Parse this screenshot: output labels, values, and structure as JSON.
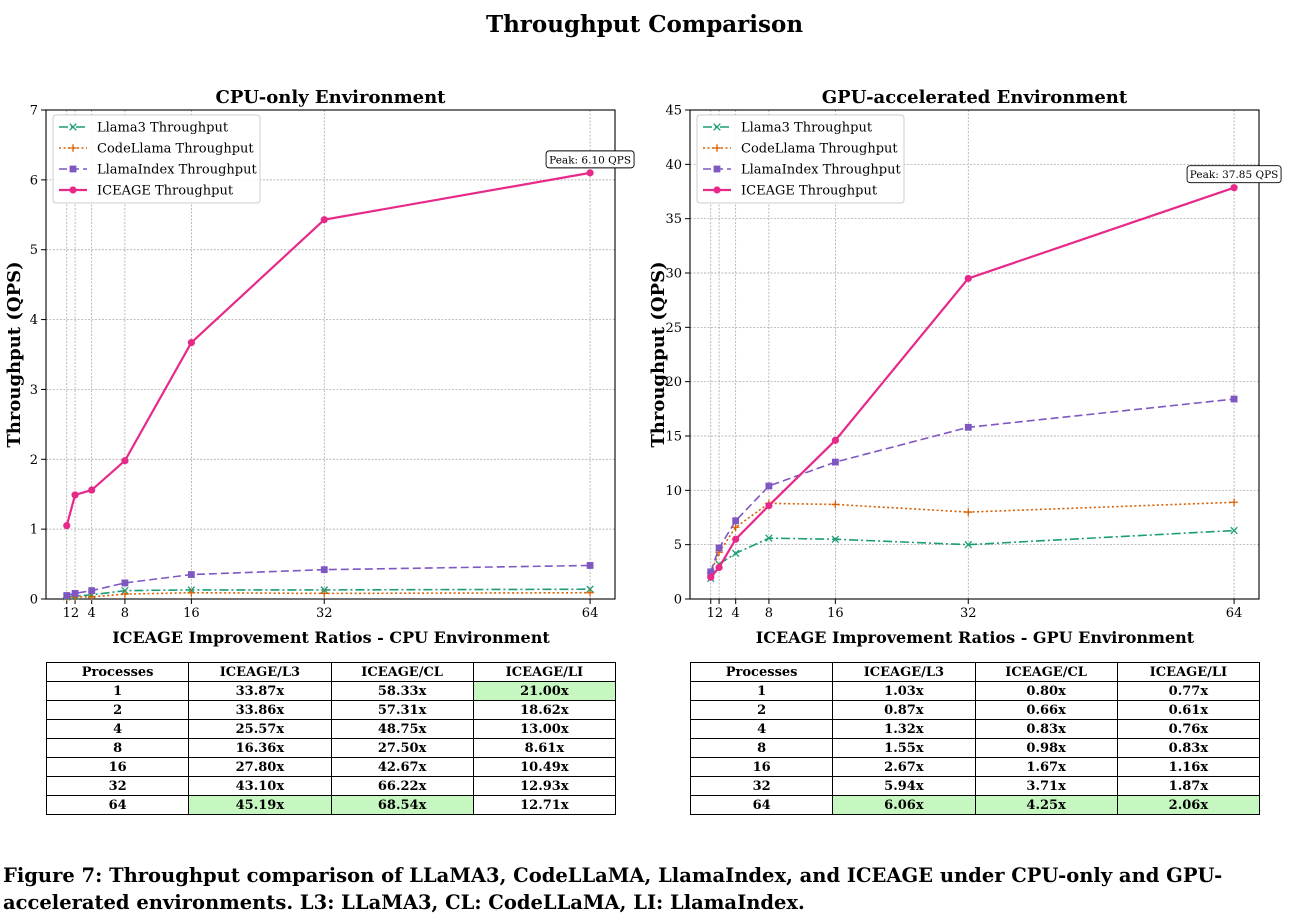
{
  "figure_title": "Throughput Comparison",
  "caption": "Figure 7: Throughput comparison of LLaMA3, CodeLLaMA, LlamaIndex, and ICEAGE under CPU-only and GPU-accelerated environments. L3: LLaMA3, CL: CodeLLaMA, LI: LlamaIndex.",
  "colors": {
    "llama3": "#1b9e77",
    "codellama": "#d95f02",
    "llamaindex": "#7e57c2",
    "iceage": "#e7298a",
    "highlight": "#c6f7c0"
  },
  "chart_data": [
    {
      "type": "line",
      "title": "CPU-only Environment",
      "xlabel": "",
      "ylabel": "Throughput (QPS)",
      "x": [
        1,
        2,
        4,
        8,
        16,
        32,
        64
      ],
      "xticks": [
        "1",
        "2",
        "4",
        "8",
        "16",
        "32",
        "64"
      ],
      "xlim": [
        -1.5,
        67
      ],
      "ylim": [
        0,
        7
      ],
      "yticks": [
        "0",
        "1",
        "2",
        "3",
        "4",
        "5",
        "6",
        "7"
      ],
      "grid": true,
      "legend": "top-left",
      "series": [
        {
          "name": "Llama3 Throughput",
          "values": [
            0.03,
            0.04,
            0.06,
            0.12,
            0.13,
            0.13,
            0.14
          ]
        },
        {
          "name": "CodeLlama Throughput",
          "values": [
            0.02,
            0.03,
            0.03,
            0.07,
            0.09,
            0.08,
            0.09
          ]
        },
        {
          "name": "LlamaIndex Throughput",
          "values": [
            0.05,
            0.08,
            0.12,
            0.23,
            0.35,
            0.42,
            0.48
          ]
        },
        {
          "name": "ICEAGE Throughput",
          "values": [
            1.05,
            1.49,
            1.56,
            1.98,
            3.67,
            5.43,
            6.1
          ]
        }
      ],
      "annotation": "Peak: 6.10 QPS"
    },
    {
      "type": "line",
      "title": "GPU-accelerated Environment",
      "xlabel": "",
      "ylabel": "Throughput (QPS)",
      "x": [
        1,
        2,
        4,
        8,
        16,
        32,
        64
      ],
      "xticks": [
        "1",
        "2",
        "4",
        "8",
        "16",
        "32",
        "64"
      ],
      "xlim": [
        -1.5,
        67
      ],
      "ylim": [
        0,
        45
      ],
      "yticks": [
        "0",
        "5",
        "10",
        "15",
        "20",
        "25",
        "30",
        "35",
        "40",
        "45"
      ],
      "grid": true,
      "legend": "top-left",
      "series": [
        {
          "name": "Llama3 Throughput",
          "values": [
            1.9,
            3.2,
            4.2,
            5.6,
            5.5,
            5.0,
            6.3
          ]
        },
        {
          "name": "CodeLlama Throughput",
          "values": [
            2.4,
            4.3,
            6.6,
            8.8,
            8.7,
            8.0,
            8.9
          ]
        },
        {
          "name": "LlamaIndex Throughput",
          "values": [
            2.5,
            4.7,
            7.2,
            10.4,
            12.6,
            15.8,
            18.4
          ]
        },
        {
          "name": "ICEAGE Throughput",
          "values": [
            2.0,
            2.9,
            5.5,
            8.6,
            14.6,
            29.5,
            37.85
          ]
        }
      ],
      "annotation": "Peak: 37.85 QPS"
    }
  ],
  "tables": [
    {
      "title": "ICEAGE Improvement Ratios - CPU Environment",
      "headers": [
        "Processes",
        "ICEAGE/L3",
        "ICEAGE/CL",
        "ICEAGE/LI"
      ],
      "rows": [
        [
          "1",
          "33.87x",
          "58.33x",
          "21.00x"
        ],
        [
          "2",
          "33.86x",
          "57.31x",
          "18.62x"
        ],
        [
          "4",
          "25.57x",
          "48.75x",
          "13.00x"
        ],
        [
          "8",
          "16.36x",
          "27.50x",
          "8.61x"
        ],
        [
          "16",
          "27.80x",
          "42.67x",
          "10.49x"
        ],
        [
          "32",
          "43.10x",
          "66.22x",
          "12.93x"
        ],
        [
          "64",
          "45.19x",
          "68.54x",
          "12.71x"
        ]
      ],
      "highlight": [
        [
          0,
          3
        ],
        [
          6,
          1
        ],
        [
          6,
          2
        ]
      ]
    },
    {
      "title": "ICEAGE Improvement Ratios - GPU Environment",
      "headers": [
        "Processes",
        "ICEAGE/L3",
        "ICEAGE/CL",
        "ICEAGE/LI"
      ],
      "rows": [
        [
          "1",
          "1.03x",
          "0.80x",
          "0.77x"
        ],
        [
          "2",
          "0.87x",
          "0.66x",
          "0.61x"
        ],
        [
          "4",
          "1.32x",
          "0.83x",
          "0.76x"
        ],
        [
          "8",
          "1.55x",
          "0.98x",
          "0.83x"
        ],
        [
          "16",
          "2.67x",
          "1.67x",
          "1.16x"
        ],
        [
          "32",
          "5.94x",
          "3.71x",
          "1.87x"
        ],
        [
          "64",
          "6.06x",
          "4.25x",
          "2.06x"
        ]
      ],
      "highlight": [
        [
          6,
          1
        ],
        [
          6,
          2
        ],
        [
          6,
          3
        ]
      ]
    }
  ]
}
